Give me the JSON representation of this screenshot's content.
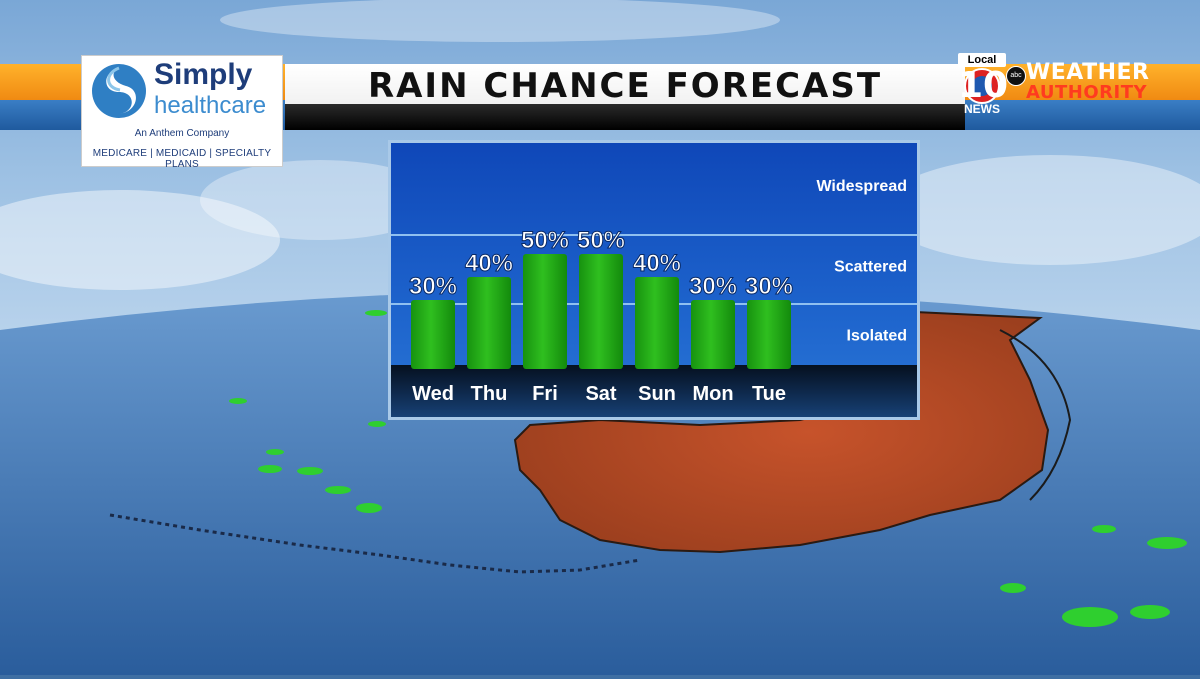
{
  "header": {
    "title": "RAIN CHANCE FORECAST"
  },
  "sponsor": {
    "name": "Simply",
    "name_sub": "healthcare",
    "tagline": "An Anthem Company",
    "plans": "MEDICARE | MEDICAID | SPECIALTY PLANS",
    "brand_color": "#1e3d7a",
    "accent_color": "#3c8ccf",
    "logo_icon": "swirl-icon"
  },
  "station": {
    "local_label": "Local",
    "number": "10",
    "news_label": "NEWS",
    "network": "abc",
    "brand_line1": "WEATHER",
    "brand_line2": "AUTHORITY"
  },
  "chart_data": {
    "type": "bar",
    "title": "RAIN CHANCE FORECAST",
    "categories": [
      "Wed",
      "Thu",
      "Fri",
      "Sat",
      "Sun",
      "Mon",
      "Tue"
    ],
    "values": [
      30,
      40,
      50,
      50,
      40,
      30,
      30
    ],
    "labels": [
      "30%",
      "40%",
      "50%",
      "50%",
      "40%",
      "30%",
      "30%"
    ],
    "value_unit": "%",
    "ylim": [
      0,
      100
    ],
    "bands": [
      {
        "label": "Isolated",
        "from": 0,
        "to": 30
      },
      {
        "label": "Scattered",
        "from": 30,
        "to": 60
      },
      {
        "label": "Widespread",
        "from": 60,
        "to": 100
      }
    ],
    "bar_color": "#2fbf1f",
    "grid": false
  }
}
